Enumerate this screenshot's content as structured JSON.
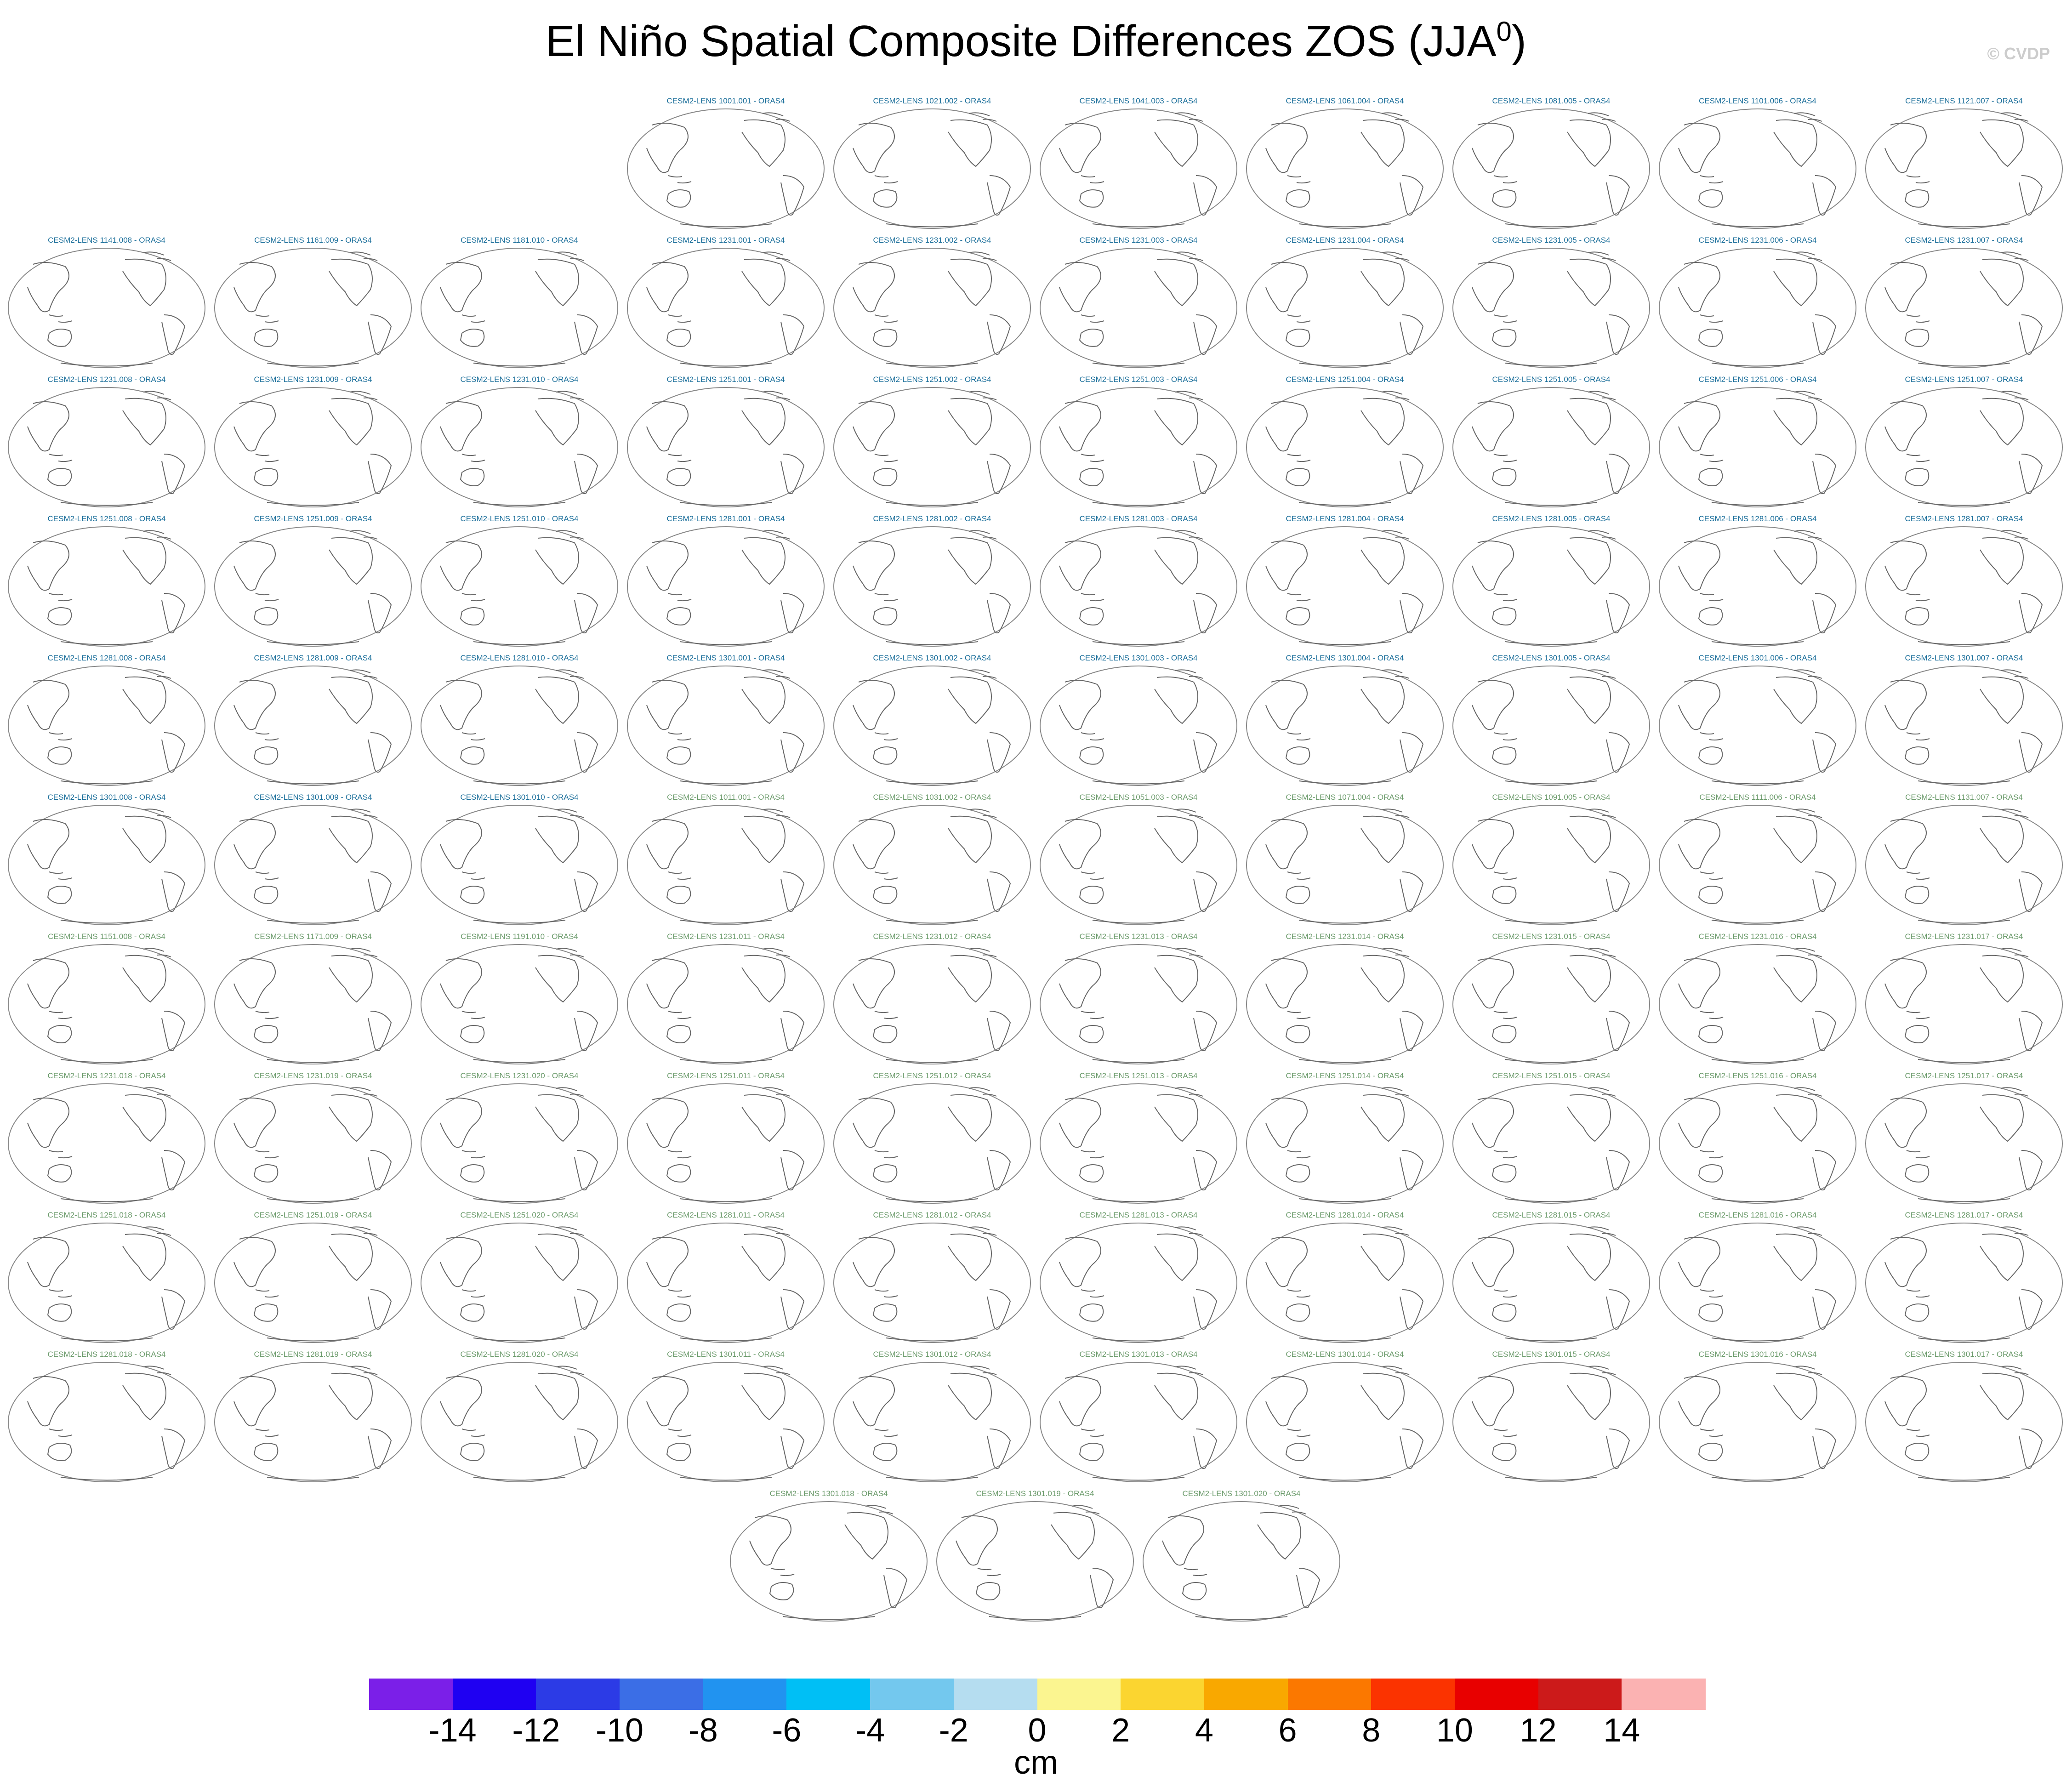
{
  "figure": {
    "title": "El Niño Spatial Composite Differences ZOS (JJA",
    "title_superscript": "0",
    "title_suffix": ")",
    "watermark": "© CVDP",
    "units": "cm"
  },
  "colors": {
    "group1_title": "#1a6e9a",
    "group2_title": "#6a9a6a",
    "coastline": "#666666"
  },
  "panels": [
    {
      "label": "CESM2-LENS 1001.001 - ORAS4",
      "group": 1
    },
    {
      "label": "CESM2-LENS 1021.002 - ORAS4",
      "group": 1
    },
    {
      "label": "CESM2-LENS 1041.003 - ORAS4",
      "group": 1
    },
    {
      "label": "CESM2-LENS 1061.004 - ORAS4",
      "group": 1
    },
    {
      "label": "CESM2-LENS 1081.005 - ORAS4",
      "group": 1
    },
    {
      "label": "CESM2-LENS 1101.006 - ORAS4",
      "group": 1
    },
    {
      "label": "CESM2-LENS 1121.007 - ORAS4",
      "group": 1
    },
    {
      "label": "CESM2-LENS 1141.008 - ORAS4",
      "group": 1
    },
    {
      "label": "CESM2-LENS 1161.009 - ORAS4",
      "group": 1
    },
    {
      "label": "CESM2-LENS 1181.010 - ORAS4",
      "group": 1
    },
    {
      "label": "CESM2-LENS 1231.001 - ORAS4",
      "group": 1
    },
    {
      "label": "CESM2-LENS 1231.002 - ORAS4",
      "group": 1
    },
    {
      "label": "CESM2-LENS 1231.003 - ORAS4",
      "group": 1
    },
    {
      "label": "CESM2-LENS 1231.004 - ORAS4",
      "group": 1
    },
    {
      "label": "CESM2-LENS 1231.005 - ORAS4",
      "group": 1
    },
    {
      "label": "CESM2-LENS 1231.006 - ORAS4",
      "group": 1
    },
    {
      "label": "CESM2-LENS 1231.007 - ORAS4",
      "group": 1
    },
    {
      "label": "CESM2-LENS 1231.008 - ORAS4",
      "group": 1
    },
    {
      "label": "CESM2-LENS 1231.009 - ORAS4",
      "group": 1
    },
    {
      "label": "CESM2-LENS 1231.010 - ORAS4",
      "group": 1
    },
    {
      "label": "CESM2-LENS 1251.001 - ORAS4",
      "group": 1
    },
    {
      "label": "CESM2-LENS 1251.002 - ORAS4",
      "group": 1
    },
    {
      "label": "CESM2-LENS 1251.003 - ORAS4",
      "group": 1
    },
    {
      "label": "CESM2-LENS 1251.004 - ORAS4",
      "group": 1
    },
    {
      "label": "CESM2-LENS 1251.005 - ORAS4",
      "group": 1
    },
    {
      "label": "CESM2-LENS 1251.006 - ORAS4",
      "group": 1
    },
    {
      "label": "CESM2-LENS 1251.007 - ORAS4",
      "group": 1
    },
    {
      "label": "CESM2-LENS 1251.008 - ORAS4",
      "group": 1
    },
    {
      "label": "CESM2-LENS 1251.009 - ORAS4",
      "group": 1
    },
    {
      "label": "CESM2-LENS 1251.010 - ORAS4",
      "group": 1
    },
    {
      "label": "CESM2-LENS 1281.001 - ORAS4",
      "group": 1
    },
    {
      "label": "CESM2-LENS 1281.002 - ORAS4",
      "group": 1
    },
    {
      "label": "CESM2-LENS 1281.003 - ORAS4",
      "group": 1
    },
    {
      "label": "CESM2-LENS 1281.004 - ORAS4",
      "group": 1
    },
    {
      "label": "CESM2-LENS 1281.005 - ORAS4",
      "group": 1
    },
    {
      "label": "CESM2-LENS 1281.006 - ORAS4",
      "group": 1
    },
    {
      "label": "CESM2-LENS 1281.007 - ORAS4",
      "group": 1
    },
    {
      "label": "CESM2-LENS 1281.008 - ORAS4",
      "group": 1
    },
    {
      "label": "CESM2-LENS 1281.009 - ORAS4",
      "group": 1
    },
    {
      "label": "CESM2-LENS 1281.010 - ORAS4",
      "group": 1
    },
    {
      "label": "CESM2-LENS 1301.001 - ORAS4",
      "group": 1
    },
    {
      "label": "CESM2-LENS 1301.002 - ORAS4",
      "group": 1
    },
    {
      "label": "CESM2-LENS 1301.003 - ORAS4",
      "group": 1
    },
    {
      "label": "CESM2-LENS 1301.004 - ORAS4",
      "group": 1
    },
    {
      "label": "CESM2-LENS 1301.005 - ORAS4",
      "group": 1
    },
    {
      "label": "CESM2-LENS 1301.006 - ORAS4",
      "group": 1
    },
    {
      "label": "CESM2-LENS 1301.007 - ORAS4",
      "group": 1
    },
    {
      "label": "CESM2-LENS 1301.008 - ORAS4",
      "group": 1
    },
    {
      "label": "CESM2-LENS 1301.009 - ORAS4",
      "group": 1
    },
    {
      "label": "CESM2-LENS 1301.010 - ORAS4",
      "group": 1
    },
    {
      "label": "CESM2-LENS 1011.001 - ORAS4",
      "group": 2
    },
    {
      "label": "CESM2-LENS 1031.002 - ORAS4",
      "group": 2
    },
    {
      "label": "CESM2-LENS 1051.003 - ORAS4",
      "group": 2
    },
    {
      "label": "CESM2-LENS 1071.004 - ORAS4",
      "group": 2
    },
    {
      "label": "CESM2-LENS 1091.005 - ORAS4",
      "group": 2
    },
    {
      "label": "CESM2-LENS 1111.006 - ORAS4",
      "group": 2
    },
    {
      "label": "CESM2-LENS 1131.007 - ORAS4",
      "group": 2
    },
    {
      "label": "CESM2-LENS 1151.008 - ORAS4",
      "group": 2
    },
    {
      "label": "CESM2-LENS 1171.009 - ORAS4",
      "group": 2
    },
    {
      "label": "CESM2-LENS 1191.010 - ORAS4",
      "group": 2
    },
    {
      "label": "CESM2-LENS 1231.011 - ORAS4",
      "group": 2
    },
    {
      "label": "CESM2-LENS 1231.012 - ORAS4",
      "group": 2
    },
    {
      "label": "CESM2-LENS 1231.013 - ORAS4",
      "group": 2
    },
    {
      "label": "CESM2-LENS 1231.014 - ORAS4",
      "group": 2
    },
    {
      "label": "CESM2-LENS 1231.015 - ORAS4",
      "group": 2
    },
    {
      "label": "CESM2-LENS 1231.016 - ORAS4",
      "group": 2
    },
    {
      "label": "CESM2-LENS 1231.017 - ORAS4",
      "group": 2
    },
    {
      "label": "CESM2-LENS 1231.018 - ORAS4",
      "group": 2
    },
    {
      "label": "CESM2-LENS 1231.019 - ORAS4",
      "group": 2
    },
    {
      "label": "CESM2-LENS 1231.020 - ORAS4",
      "group": 2
    },
    {
      "label": "CESM2-LENS 1251.011 - ORAS4",
      "group": 2
    },
    {
      "label": "CESM2-LENS 1251.012 - ORAS4",
      "group": 2
    },
    {
      "label": "CESM2-LENS 1251.013 - ORAS4",
      "group": 2
    },
    {
      "label": "CESM2-LENS 1251.014 - ORAS4",
      "group": 2
    },
    {
      "label": "CESM2-LENS 1251.015 - ORAS4",
      "group": 2
    },
    {
      "label": "CESM2-LENS 1251.016 - ORAS4",
      "group": 2
    },
    {
      "label": "CESM2-LENS 1251.017 - ORAS4",
      "group": 2
    },
    {
      "label": "CESM2-LENS 1251.018 - ORAS4",
      "group": 2
    },
    {
      "label": "CESM2-LENS 1251.019 - ORAS4",
      "group": 2
    },
    {
      "label": "CESM2-LENS 1251.020 - ORAS4",
      "group": 2
    },
    {
      "label": "CESM2-LENS 1281.011 - ORAS4",
      "group": 2
    },
    {
      "label": "CESM2-LENS 1281.012 - ORAS4",
      "group": 2
    },
    {
      "label": "CESM2-LENS 1281.013 - ORAS4",
      "group": 2
    },
    {
      "label": "CESM2-LENS 1281.014 - ORAS4",
      "group": 2
    },
    {
      "label": "CESM2-LENS 1281.015 - ORAS4",
      "group": 2
    },
    {
      "label": "CESM2-LENS 1281.016 - ORAS4",
      "group": 2
    },
    {
      "label": "CESM2-LENS 1281.017 - ORAS4",
      "group": 2
    },
    {
      "label": "CESM2-LENS 1281.018 - ORAS4",
      "group": 2
    },
    {
      "label": "CESM2-LENS 1281.019 - ORAS4",
      "group": 2
    },
    {
      "label": "CESM2-LENS 1281.020 - ORAS4",
      "group": 2
    },
    {
      "label": "CESM2-LENS 1301.011 - ORAS4",
      "group": 2
    },
    {
      "label": "CESM2-LENS 1301.012 - ORAS4",
      "group": 2
    },
    {
      "label": "CESM2-LENS 1301.013 - ORAS4",
      "group": 2
    },
    {
      "label": "CESM2-LENS 1301.014 - ORAS4",
      "group": 2
    },
    {
      "label": "CESM2-LENS 1301.015 - ORAS4",
      "group": 2
    },
    {
      "label": "CESM2-LENS 1301.016 - ORAS4",
      "group": 2
    },
    {
      "label": "CESM2-LENS 1301.017 - ORAS4",
      "group": 2
    },
    {
      "label": "CESM2-LENS 1301.018 - ORAS4",
      "group": 2
    },
    {
      "label": "CESM2-LENS 1301.019 - ORAS4",
      "group": 2
    },
    {
      "label": "CESM2-LENS 1301.020 - ORAS4",
      "group": 2
    }
  ],
  "colorbar": {
    "colors": [
      "#7b1fe8",
      "#1f00f2",
      "#2c3be6",
      "#3b6ee6",
      "#2193f0",
      "#00bff5",
      "#73c8ee",
      "#b5ddf0",
      "#fbf590",
      "#fbd530",
      "#f9a800",
      "#fb7800",
      "#fb3300",
      "#e80000",
      "#cc1a1a",
      "#fbb2b2"
    ],
    "tick_labels": [
      "-14",
      "-12",
      "-10",
      "-8",
      "-6",
      "-4",
      "-2",
      "0",
      "2",
      "4",
      "6",
      "8",
      "10",
      "12",
      "14"
    ]
  }
}
